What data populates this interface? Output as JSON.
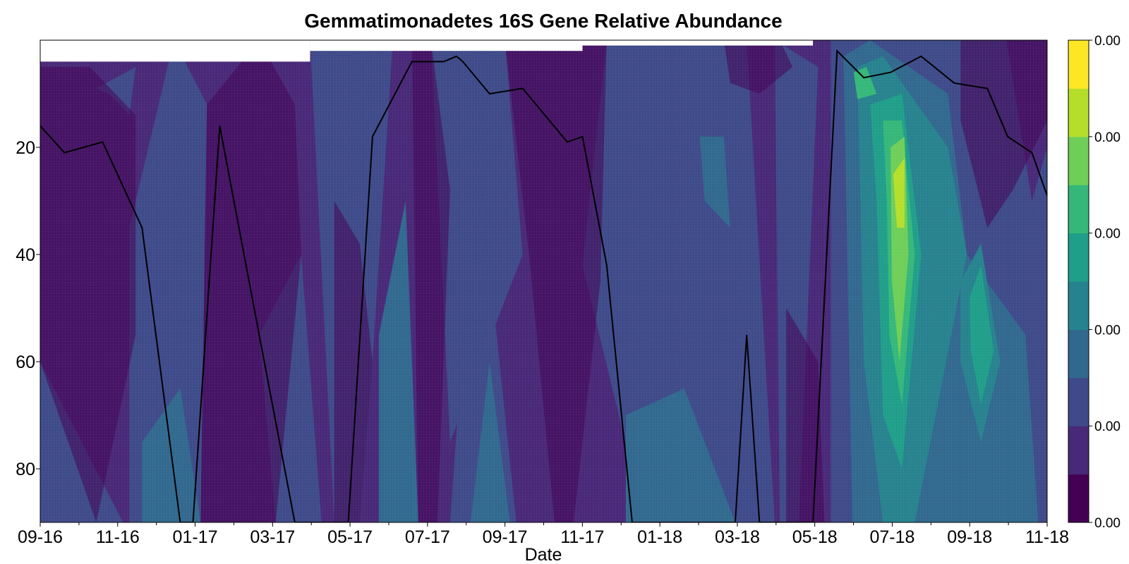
{
  "chart_data": {
    "type": "heatmap",
    "subtype": "filled-contour",
    "title": "Gemmatimonadetes 16S Gene Relative Abundance",
    "xlabel": "Date",
    "ylabel": "",
    "x_ticks": [
      "09-16",
      "11-16",
      "01-17",
      "03-17",
      "05-17",
      "07-17",
      "09-17",
      "11-17",
      "01-18",
      "03-18",
      "05-18",
      "07-18",
      "09-18",
      "11-18"
    ],
    "x_range": [
      "2016-09-01",
      "2018-11-01"
    ],
    "y_ticks": [
      20,
      40,
      60,
      80
    ],
    "y_range": [
      0,
      90
    ],
    "y_inverted": true,
    "colormap": "viridis",
    "colorbar": {
      "tick_labels": [
        "0.00",
        "0.00",
        "0.00",
        "0.00",
        "0.00",
        "0.00"
      ],
      "levels": 10,
      "colors": [
        "#440154",
        "#482878",
        "#3e4a89",
        "#31688e",
        "#26828e",
        "#1f9e89",
        "#35b779",
        "#6ece58",
        "#b5de2b",
        "#fde725"
      ]
    },
    "depth_cap": [
      {
        "from": "2016-09-01",
        "to": "2017-04-01",
        "depth": 4
      },
      {
        "from": "2017-04-01",
        "to": "2017-11-01",
        "depth": 2
      },
      {
        "from": "2017-11-01",
        "to": "2018-05-01",
        "depth": 1
      },
      {
        "from": "2018-05-01",
        "to": "2018-11-01",
        "depth": 0
      }
    ],
    "line_series": {
      "color": "#000000",
      "points": [
        [
          "2016-09-01",
          16
        ],
        [
          "2016-09-20",
          21
        ],
        [
          "2016-10-20",
          19
        ],
        [
          "2016-11-20",
          35
        ],
        [
          "2016-12-20",
          90
        ],
        [
          "2016-12-30",
          90
        ],
        [
          "2017-01-20",
          16
        ],
        [
          "2017-02-20",
          55
        ],
        [
          "2017-03-20",
          90
        ],
        [
          "2017-05-01",
          90
        ],
        [
          "2017-05-20",
          18
        ],
        [
          "2017-06-20",
          4
        ],
        [
          "2017-07-15",
          4
        ],
        [
          "2017-07-25",
          3
        ],
        [
          "2017-07-30",
          4
        ],
        [
          "2017-08-20",
          10
        ],
        [
          "2017-09-15",
          9
        ],
        [
          "2017-10-20",
          19
        ],
        [
          "2017-11-01",
          18
        ],
        [
          "2017-11-20",
          42
        ],
        [
          "2017-12-10",
          90
        ],
        [
          "2018-03-01",
          90
        ],
        [
          "2018-03-10",
          55
        ],
        [
          "2018-03-20",
          90
        ],
        [
          "2018-05-01",
          90
        ],
        [
          "2018-05-20",
          2
        ],
        [
          "2018-06-10",
          7
        ],
        [
          "2018-07-01",
          6
        ],
        [
          "2018-07-25",
          3
        ],
        [
          "2018-08-20",
          8
        ],
        [
          "2018-09-15",
          9
        ],
        [
          "2018-10-01",
          18
        ],
        [
          "2018-10-20",
          21
        ],
        [
          "2018-11-01",
          29
        ]
      ]
    }
  }
}
